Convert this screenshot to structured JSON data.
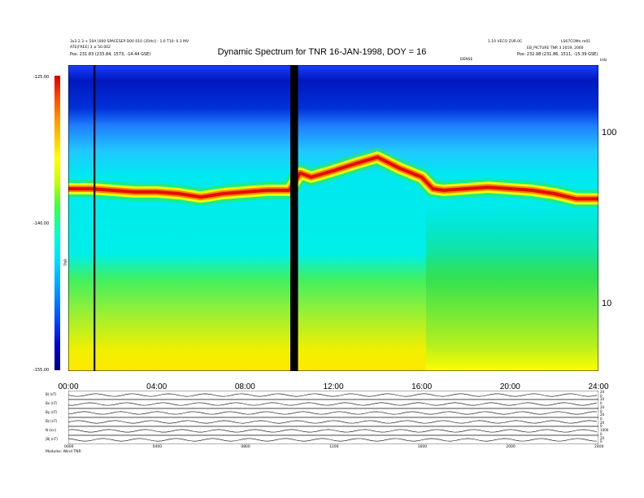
{
  "header": {
    "title": "Dynamic Spectrum for TNR 16-JAN-1998, DOY = 16",
    "left_line1": "3x3.2.3 + 50A [000 SPACESEP D00 010 (35th)] - 1.0 T10: 0.3 MV",
    "left_line2": "ATE(FREE) 3 ≥ 50.002",
    "left_line3": "Pos: 231.83 (233.84, 1573, -14.44 GSE)",
    "right_line1": "1.10 VECO ZUR.0C",
    "right_line2": "LS67COMn.m01",
    "right_line3": "EB_PICTURE TNR 3 2019, 2000",
    "right_line4": "Pos: 232.98 (231.86, 1511, -15.39 GSE)",
    "mid_label": "DENSE",
    "unit_label": "kHz",
    "cbar_label": "TNR",
    "footer_label": "Modules: Wind TNR"
  },
  "chart_data": {
    "type": "heatmap",
    "title": "Dynamic Spectrum for TNR 16-JAN-1998, DOY = 16",
    "x_range_hours": [
      0,
      24
    ],
    "x_ticks": [
      "00:00",
      "04:00",
      "08:00",
      "12:00",
      "16:00",
      "20:00",
      "24:00"
    ],
    "y_scale": "log",
    "y_unit": "kHz",
    "y_ticks": [
      10,
      100
    ],
    "colorbar_ticks": [
      "-125.00",
      "-140.00",
      "-155.00"
    ],
    "colorbar_label": "TNR",
    "data_gaps_hours": [
      [
        1.15,
        1.2
      ],
      [
        10.05,
        10.4
      ]
    ],
    "plasma_line": {
      "hours": [
        0,
        1,
        2,
        3,
        4,
        5,
        6,
        7,
        8,
        9,
        10,
        10.5,
        11,
        12,
        13,
        14,
        15,
        16,
        16.5,
        17,
        18,
        19,
        20,
        21,
        22,
        23,
        24
      ],
      "khz": [
        47,
        47,
        46,
        45,
        45,
        44,
        42,
        44,
        45,
        46,
        46,
        58,
        55,
        60,
        66,
        72,
        62,
        55,
        47,
        46,
        47,
        48,
        47,
        46,
        44,
        41,
        41
      ]
    },
    "bottom_panels": {
      "labels": [
        "B| (nT)",
        "Bx (nT)",
        "By (nT)",
        "Bz (nT)",
        "N (/cc)",
        "|B| (nT)"
      ],
      "right_ticks": [
        "20",
        "0",
        "20",
        "0",
        "20",
        "0",
        "20",
        "0",
        "20",
        "0",
        "1000",
        "0",
        "20",
        "0"
      ],
      "x_ticks": [
        "0000",
        "0400",
        "0800",
        "1200",
        "1600",
        "2000",
        "2400"
      ]
    }
  }
}
